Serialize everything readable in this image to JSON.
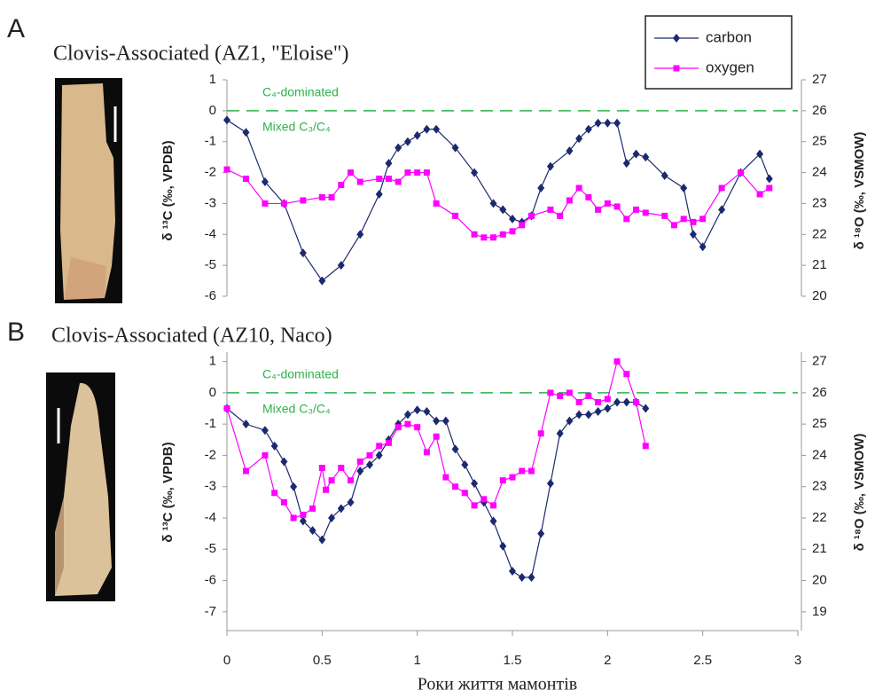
{
  "chart_data": [
    {
      "type": "line",
      "panel_label": "A",
      "title": "Clovis-Associated (AZ1, \"Eloise\")",
      "y_label": "δ ¹³C (‰, VPDB)",
      "y2_label": "δ ¹⁸O (‰, VSMOW)",
      "annotations": [
        "C₄-dominated",
        "Mixed C₃/C₄"
      ],
      "reference_line": {
        "value": 0,
        "color": "#2db34a"
      },
      "xlim": [
        0,
        3
      ],
      "ylim": [
        -6,
        1
      ],
      "yticks": [
        -6,
        -5,
        -4,
        -3,
        -2,
        -1,
        0,
        1
      ],
      "y2lim": [
        20,
        27
      ],
      "y2ticks": [
        20,
        21,
        22,
        23,
        24,
        25,
        26,
        27
      ],
      "legend": "upper right",
      "series": [
        {
          "name": "carbon",
          "color": "#1b2a6e",
          "marker": "diamond",
          "x": [
            0,
            0.1,
            0.2,
            0.3,
            0.4,
            0.5,
            0.6,
            0.7,
            0.8,
            0.85,
            0.9,
            0.95,
            1.0,
            1.05,
            1.1,
            1.2,
            1.3,
            1.4,
            1.45,
            1.5,
            1.55,
            1.6,
            1.65,
            1.7,
            1.8,
            1.85,
            1.9,
            1.95,
            2.0,
            2.05,
            2.1,
            2.15,
            2.2,
            2.3,
            2.4,
            2.45,
            2.5,
            2.6,
            2.7,
            2.8,
            2.85
          ],
          "values": [
            -0.3,
            -0.7,
            -2.3,
            -3.0,
            -4.6,
            -5.5,
            -5.0,
            -4.0,
            -2.7,
            -1.7,
            -1.2,
            -1.0,
            -0.8,
            -0.6,
            -0.6,
            -1.2,
            -2.0,
            -3.0,
            -3.2,
            -3.5,
            -3.6,
            -3.4,
            -2.5,
            -1.8,
            -1.3,
            -0.9,
            -0.6,
            -0.4,
            -0.4,
            -0.4,
            -1.7,
            -1.4,
            -1.5,
            -2.1,
            -2.5,
            -4.0,
            -4.4,
            -3.2,
            -2.0,
            -1.4,
            -2.2
          ]
        },
        {
          "name": "oxygen",
          "color": "#ff00ff",
          "marker": "square",
          "axis": "y2",
          "x": [
            0,
            0.1,
            0.2,
            0.3,
            0.4,
            0.5,
            0.55,
            0.6,
            0.65,
            0.7,
            0.8,
            0.85,
            0.9,
            0.95,
            1.0,
            1.05,
            1.1,
            1.2,
            1.3,
            1.35,
            1.4,
            1.45,
            1.5,
            1.55,
            1.6,
            1.7,
            1.75,
            1.8,
            1.85,
            1.9,
            1.95,
            2.0,
            2.05,
            2.1,
            2.15,
            2.2,
            2.3,
            2.35,
            2.4,
            2.45,
            2.5,
            2.6,
            2.7,
            2.8,
            2.85
          ],
          "values": [
            24.1,
            23.8,
            23.0,
            23.0,
            23.1,
            23.2,
            23.2,
            23.6,
            24.0,
            23.7,
            23.8,
            23.8,
            23.7,
            24.0,
            24.0,
            24.0,
            23.0,
            22.6,
            22.0,
            21.9,
            21.9,
            22.0,
            22.1,
            22.3,
            22.6,
            22.8,
            22.6,
            23.1,
            23.5,
            23.2,
            22.8,
            23.0,
            22.9,
            22.5,
            22.8,
            22.7,
            22.6,
            22.3,
            22.5,
            22.4,
            22.5,
            23.5,
            24.0,
            23.3,
            23.5
          ]
        }
      ]
    },
    {
      "type": "line",
      "panel_label": "B",
      "title": "Clovis-Associated (AZ10, Naco)",
      "y_label": "δ ¹³C (‰, VPDB)",
      "y2_label": "δ ¹⁸O (‰, VSMOW)",
      "x_label": "Роки життя мамонтів",
      "annotations": [
        "C₄-dominated",
        "Mixed C₃/C₄"
      ],
      "reference_line": {
        "value": 0,
        "color": "#2db34a"
      },
      "xlim": [
        0,
        3
      ],
      "xticks": [
        0,
        0.5,
        1,
        1.5,
        2,
        2.5,
        3
      ],
      "ylim": [
        -7.6,
        1.3
      ],
      "yticks": [
        -7,
        -6,
        -5,
        -4,
        -3,
        -2,
        -1,
        0,
        1
      ],
      "y2lim": [
        18.4,
        27.3
      ],
      "y2ticks": [
        19,
        20,
        21,
        22,
        23,
        24,
        25,
        26,
        27
      ],
      "series": [
        {
          "color": "#1b2a6e",
          "marker": "diamond",
          "x": [
            0,
            0.1,
            0.2,
            0.25,
            0.3,
            0.35,
            0.4,
            0.45,
            0.5,
            0.55,
            0.6,
            0.65,
            0.7,
            0.75,
            0.8,
            0.85,
            0.9,
            0.95,
            1.0,
            1.05,
            1.1,
            1.15,
            1.2,
            1.25,
            1.3,
            1.35,
            1.4,
            1.45,
            1.5,
            1.55,
            1.6,
            1.65,
            1.7,
            1.75,
            1.8,
            1.85,
            1.9,
            1.95,
            2.0,
            2.05,
            2.1,
            2.15,
            2.2
          ],
          "values": [
            -0.5,
            -1.0,
            -1.2,
            -1.7,
            -2.2,
            -3.0,
            -4.1,
            -4.4,
            -4.7,
            -4.0,
            -3.7,
            -3.5,
            -2.5,
            -2.3,
            -2.0,
            -1.5,
            -1.0,
            -0.7,
            -0.55,
            -0.6,
            -0.9,
            -0.9,
            -1.8,
            -2.3,
            -2.9,
            -3.5,
            -4.1,
            -4.9,
            -5.7,
            -5.9,
            -5.9,
            -4.5,
            -2.9,
            -1.3,
            -0.9,
            -0.7,
            -0.7,
            -0.6,
            -0.5,
            -0.3,
            -0.3,
            -0.3,
            -0.5
          ]
        },
        {
          "color": "#ff00ff",
          "marker": "square",
          "axis": "y2",
          "x": [
            0,
            0.1,
            0.2,
            0.25,
            0.3,
            0.35,
            0.4,
            0.45,
            0.5,
            0.52,
            0.55,
            0.6,
            0.65,
            0.7,
            0.75,
            0.8,
            0.85,
            0.9,
            0.95,
            1.0,
            1.05,
            1.1,
            1.15,
            1.2,
            1.25,
            1.3,
            1.35,
            1.4,
            1.45,
            1.5,
            1.55,
            1.6,
            1.65,
            1.7,
            1.75,
            1.8,
            1.85,
            1.9,
            1.95,
            2.0,
            2.05,
            2.1,
            2.15,
            2.2
          ],
          "values": [
            25.5,
            23.5,
            24.0,
            22.8,
            22.5,
            22.0,
            22.1,
            22.3,
            23.6,
            22.9,
            23.2,
            23.6,
            23.2,
            23.8,
            24.0,
            24.3,
            24.4,
            24.9,
            25.0,
            24.9,
            24.1,
            24.6,
            23.3,
            23.0,
            22.8,
            22.4,
            22.6,
            22.4,
            23.2,
            23.3,
            23.5,
            23.5,
            24.7,
            26.0,
            25.9,
            26.0,
            25.7,
            25.9,
            25.7,
            25.8,
            27.0,
            26.6,
            25.7,
            24.3
          ]
        }
      ]
    }
  ]
}
